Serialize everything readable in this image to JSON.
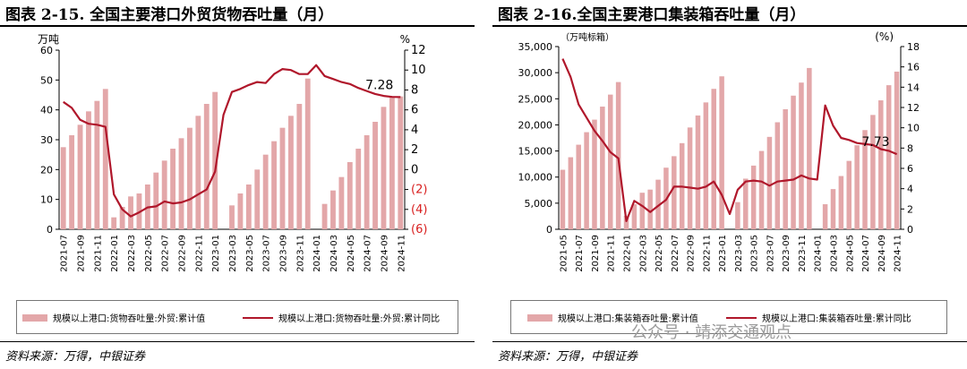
{
  "panels": [
    {
      "title": "图表 2-15. 全国主要港口外贸货物吞吐量（月）",
      "source": "资料来源：万得，中银证券",
      "legend": {
        "bar": "规模以上港口:货物吞吐量:外贸:累计值",
        "line": "规模以上港口:货物吞吐量:外贸:累计同比"
      }
    },
    {
      "title": "图表 2-16.全国主要港口集装箱吞吐量（月）",
      "source": "资料来源：万得，中银证券",
      "legend": {
        "bar": "规模以上港口:集装箱吞吐量:累计值",
        "line": "规模以上港口:集装箱吞吐量:累计同比"
      },
      "watermark": "公众号 · 靖添交通观点"
    }
  ],
  "chart_data": [
    {
      "type": "bar",
      "left_axis_unit": "万吨",
      "right_axis_unit": "%",
      "ylim_left": [
        0,
        60
      ],
      "ylim_right": [
        -6,
        12
      ],
      "yticks_left": [
        "0",
        "10",
        "20",
        "30",
        "40",
        "50",
        "60"
      ],
      "yticks_right": [
        {
          "value": 12,
          "label": "12"
        },
        {
          "value": 10,
          "label": "10"
        },
        {
          "value": 8,
          "label": "8"
        },
        {
          "value": 6,
          "label": "6"
        },
        {
          "value": 4,
          "label": "4"
        },
        {
          "value": 2,
          "label": "2"
        },
        {
          "value": 0,
          "label": "0"
        },
        {
          "value": -2,
          "label": "(2)"
        },
        {
          "value": -4,
          "label": "(4)"
        },
        {
          "value": -6,
          "label": "(6)"
        }
      ],
      "negative_tick_color": "#d81e1e",
      "x_tick_labels": [
        "2021-07",
        "2021-09",
        "2021-11",
        "2022-01",
        "2022-03",
        "2022-05",
        "2022-07",
        "2022-09",
        "2022-11",
        "2023-01",
        "2023-03",
        "2023-05",
        "2023-07",
        "2023-09",
        "2023-11",
        "2024-01",
        "2024-03",
        "2024-05",
        "2024-07",
        "2024-09",
        "2024-11"
      ],
      "months": [
        "2021-07",
        "2021-08",
        "2021-09",
        "2021-10",
        "2021-11",
        "2021-12",
        "2022-01",
        "2022-02",
        "2022-03",
        "2022-04",
        "2022-05",
        "2022-06",
        "2022-07",
        "2022-08",
        "2022-09",
        "2022-10",
        "2022-11",
        "2022-12",
        "2023-01",
        "2023-02",
        "2023-03",
        "2023-04",
        "2023-05",
        "2023-06",
        "2023-07",
        "2023-08",
        "2023-09",
        "2023-10",
        "2023-11",
        "2023-12",
        "2024-01",
        "2024-02",
        "2024-03",
        "2024-04",
        "2024-05",
        "2024-06",
        "2024-07",
        "2024-08",
        "2024-09",
        "2024-10",
        "2024-11"
      ],
      "series": [
        {
          "name": "规模以上港口:货物吞吐量:外贸:累计值",
          "axis": "left",
          "kind": "bar",
          "values": [
            27.5,
            31.5,
            35,
            39.5,
            43,
            47,
            4,
            7.5,
            11,
            12,
            15,
            19,
            23,
            27,
            30.5,
            34,
            38,
            42,
            46,
            null,
            8,
            12,
            15,
            20,
            25,
            29.5,
            34,
            38,
            42,
            50.5,
            null,
            8.5,
            13,
            17.5,
            22.5,
            27,
            31.5,
            36,
            41,
            44.5,
            44.5
          ]
        },
        {
          "name": "规模以上港口:货物吞吐量:外贸:累计同比",
          "axis": "right",
          "kind": "line",
          "values": [
            6.8,
            6.2,
            5.0,
            4.6,
            4.5,
            4.3,
            -2.5,
            -4.0,
            -4.7,
            -4.3,
            -3.8,
            -3.7,
            -3.2,
            -3.4,
            -3.3,
            -3.0,
            -2.5,
            -2.0,
            -0.2,
            5.5,
            7.8,
            8.1,
            8.5,
            8.8,
            8.7,
            9.6,
            10.1,
            10.0,
            9.6,
            9.6,
            10.5,
            9.4,
            9.1,
            8.8,
            8.6,
            8.2,
            7.9,
            7.6,
            7.4,
            7.3,
            7.28
          ]
        }
      ],
      "annotation": "7.28"
    },
    {
      "type": "bar",
      "left_axis_unit": "（万吨标箱）",
      "right_axis_unit": "(%)",
      "ylim_left": [
        0,
        35000
      ],
      "ylim_right": [
        0,
        18
      ],
      "yticks_left": [
        "0",
        "5,000",
        "10,000",
        "15,000",
        "20,000",
        "25,000",
        "30,000",
        "35,000"
      ],
      "yticks_right": [
        "0",
        "2",
        "4",
        "6",
        "8",
        "10",
        "12",
        "14",
        "16",
        "18"
      ],
      "x_tick_labels": [
        "2021-05",
        "2021-07",
        "2021-09",
        "2021-11",
        "2022-01",
        "2022-03",
        "2022-05",
        "2022-07",
        "2022-09",
        "2022-11",
        "2023-01",
        "2023-03",
        "2023-05",
        "2023-07",
        "2023-09",
        "2023-11",
        "2024-01",
        "2024-03",
        "2024-05",
        "2024-07",
        "2024-09",
        "2024-11"
      ],
      "months": [
        "2021-05",
        "2021-06",
        "2021-07",
        "2021-08",
        "2021-09",
        "2021-10",
        "2021-11",
        "2021-12",
        "2022-01",
        "2022-02",
        "2022-03",
        "2022-04",
        "2022-05",
        "2022-06",
        "2022-07",
        "2022-08",
        "2022-09",
        "2022-10",
        "2022-11",
        "2022-12",
        "2023-01",
        "2023-02",
        "2023-03",
        "2023-04",
        "2023-05",
        "2023-06",
        "2023-07",
        "2023-08",
        "2023-09",
        "2023-10",
        "2023-11",
        "2023-12",
        "2024-01",
        "2024-02",
        "2024-03",
        "2024-04",
        "2024-05",
        "2024-06",
        "2024-07",
        "2024-08",
        "2024-09",
        "2024-10",
        "2024-11"
      ],
      "series": [
        {
          "name": "规模以上港口:集装箱吞吐量:累计值",
          "axis": "left",
          "kind": "bar",
          "values": [
            11400,
            13800,
            16200,
            18600,
            21000,
            23500,
            25800,
            28200,
            2600,
            4800,
            7000,
            7600,
            9500,
            11800,
            14000,
            16500,
            19500,
            21800,
            24300,
            26900,
            29300,
            null,
            5200,
            9700,
            12200,
            15000,
            17700,
            20500,
            23000,
            25600,
            28100,
            30900,
            null,
            4800,
            7700,
            10200,
            13100,
            16100,
            19000,
            21900,
            24700,
            27600,
            30200
          ]
        },
        {
          "name": "规模以上港口:集装箱吞吐量:累计同比",
          "axis": "right",
          "kind": "line",
          "values": [
            16.8,
            15.0,
            12.3,
            11.0,
            9.7,
            8.7,
            7.6,
            7.0,
            0.8,
            2.8,
            2.3,
            1.7,
            2.3,
            2.9,
            4.2,
            4.2,
            4.1,
            4.0,
            4.2,
            4.7,
            3.4,
            1.5,
            3.9,
            4.7,
            4.8,
            4.7,
            4.3,
            4.7,
            4.8,
            4.9,
            5.3,
            5.0,
            4.9,
            12.2,
            10.2,
            9.0,
            8.8,
            8.5,
            8.4,
            8.3,
            7.9,
            7.73,
            7.4
          ]
        }
      ],
      "annotation": "7.73"
    }
  ]
}
